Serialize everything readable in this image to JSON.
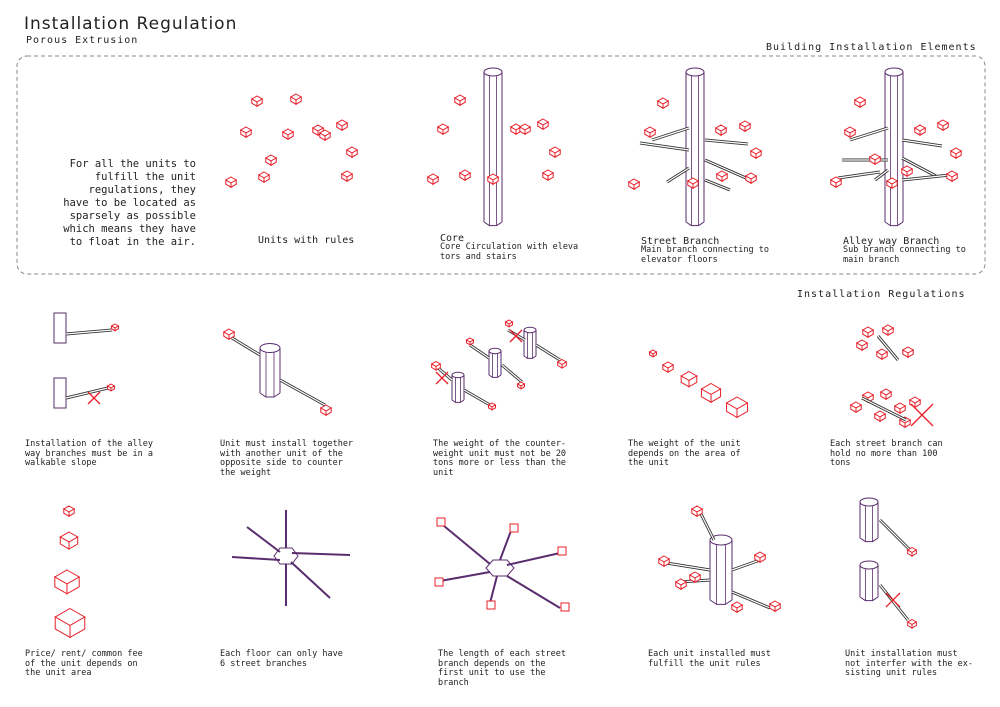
{
  "title": "Installation Regulation",
  "subtitle": "Porous Extrusion",
  "elements_section": {
    "heading": "Building Installation Elements",
    "intro_text": "For all the units to\nfulfill the unit\nregulations, they\nhave to be located as\nsparsely as possible\nwhich means they have\nto float in the air.",
    "items": [
      {
        "label": "Units with rules",
        "description": ""
      },
      {
        "label": "Core",
        "description": "Core Circulation with eleva\ntors and stairs"
      },
      {
        "label": "Street Branch",
        "description": "Main branch connecting to\nelevator floors"
      },
      {
        "label": "Alley way Branch",
        "description": "Sub branch connecting to\nmain branch"
      }
    ]
  },
  "regulations_section": {
    "heading": "Installation Regulations",
    "rules": [
      "Installation of the alley\nway branches must be in a\nwalkable slope",
      "Unit must install together\nwith another unit of the\nopposite side to counter\nthe weight",
      "The weight of the counter-\nweight unit must not be 20\ntons more or less than the\nunit",
      "The weight of the unit\ndepends on the area of\nthe unit",
      "Each street branch can\nhold no more than 100\ntons",
      "Price/ rent/ common fee\nof the unit depends on\nthe unit area",
      "Each floor can only have\n6 street branches",
      "The length of each street\nbranch depends on the\nfirst unit to use the\nbranch",
      "Each unit installed must\nfulfill the unit rules",
      "Unit installation must\nnot interfer with the ex-\nsisting unit rules"
    ]
  },
  "colors": {
    "unit": "#e8202a",
    "core": "#5a2d6e",
    "line": "#333333"
  }
}
